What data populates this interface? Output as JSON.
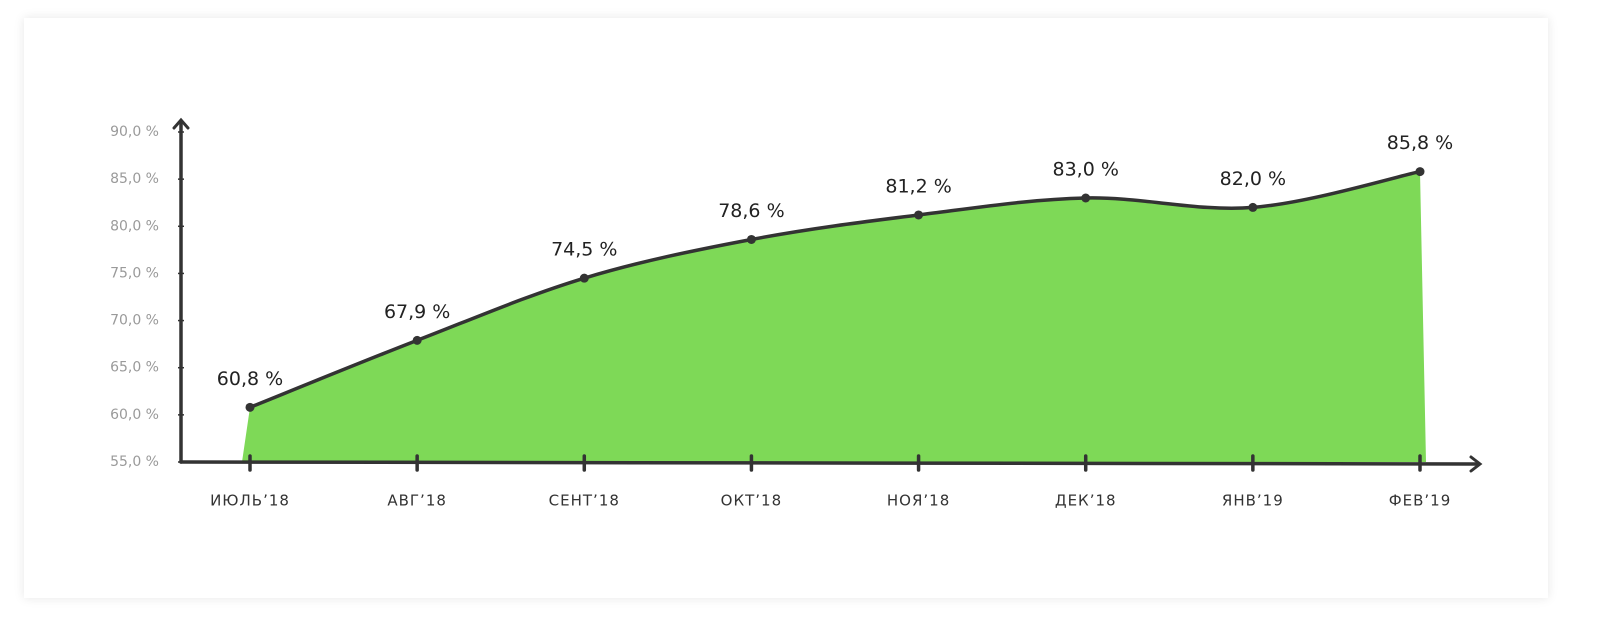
{
  "chart_data": {
    "type": "area",
    "categories": [
      "ИЮЛЬ’18",
      "АВГ’18",
      "СЕНТ’18",
      "ОКТ’18",
      "НОЯ’18",
      "ДЕК’18",
      "ЯНВ’19",
      "ФЕВ’19"
    ],
    "values": [
      60.8,
      67.9,
      74.5,
      78.6,
      81.2,
      83.0,
      82.0,
      85.8
    ],
    "value_labels": [
      "60,8 %",
      "67,9 %",
      "74,5 %",
      "78,6 %",
      "81,2 %",
      "83,0 %",
      "82,0 %",
      "85,8 %"
    ],
    "color": "#7ed957",
    "line_color": "#333333",
    "ylim": [
      55,
      90
    ],
    "yticks": [
      {
        "value": 55,
        "label": "55,0 %"
      },
      {
        "value": 60,
        "label": "60,0 %"
      },
      {
        "value": 65,
        "label": "65,0 %"
      },
      {
        "value": 70,
        "label": "70,0 %"
      },
      {
        "value": 75,
        "label": "75,0 %"
      },
      {
        "value": 80,
        "label": "80,0 %"
      },
      {
        "value": 85,
        "label": "85,0 %"
      },
      {
        "value": 90,
        "label": "90,0 %"
      }
    ]
  }
}
